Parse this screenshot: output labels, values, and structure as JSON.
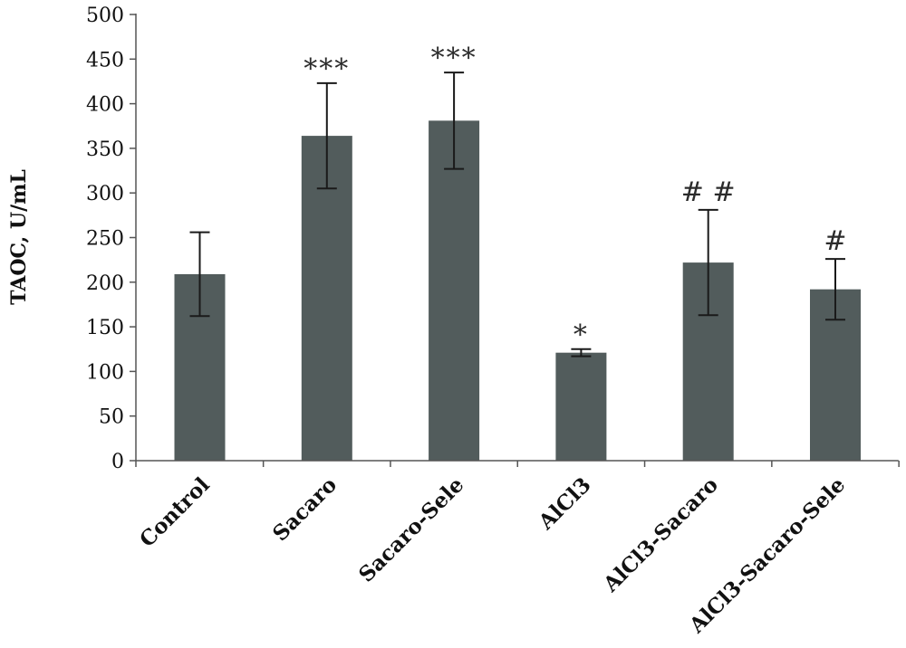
{
  "chart_data": {
    "type": "bar",
    "ylabel": "TAOC, U/mL",
    "xlabel": "",
    "ylim": [
      0,
      500
    ],
    "yticks": [
      0,
      50,
      100,
      150,
      200,
      250,
      300,
      350,
      400,
      450,
      500
    ],
    "categories": [
      "Control",
      "Sacaro",
      "Sacaro-Sele",
      "AlCl3",
      "AlCl3-Sacaro",
      "AlCl3-Sacaro-Sele"
    ],
    "values": [
      209,
      364,
      381,
      121,
      222,
      192
    ],
    "errors": [
      47,
      59,
      54,
      4,
      59,
      34
    ],
    "annotations": [
      "",
      "***",
      "***",
      "*",
      "# #",
      "#"
    ],
    "bar_color": "#525c5c",
    "grid": false
  }
}
